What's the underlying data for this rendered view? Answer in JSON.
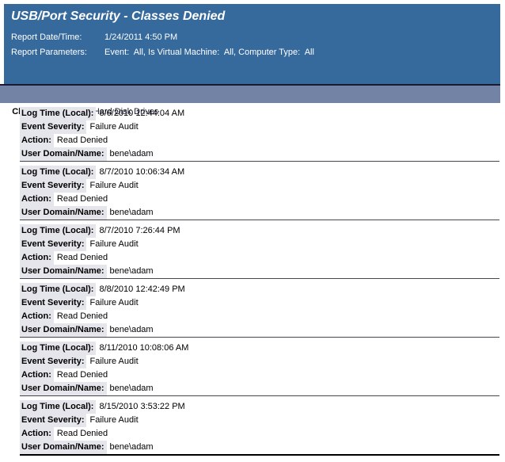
{
  "header": {
    "title": "USB/Port Security - Classes Denied",
    "report_date_label": "Report Date/Time:",
    "report_date_value": "1/24/2011 4:50 PM",
    "report_params_label": "Report Parameters:",
    "report_params_value": "Event:  All, Is Virtual Machine:  All, Computer Type:  All"
  },
  "class_section": {
    "label": "Class Description:",
    "value": "Hard Disk Drives"
  },
  "field_labels": {
    "log_time": "Log Time (Local):",
    "event_severity": "Event Severity:",
    "action": "Action:",
    "user_domain": "User Domain/Name:"
  },
  "records": [
    {
      "log_time": "8/6/2010 12:44:04 AM",
      "event_severity": "Failure Audit",
      "action": "Read Denied",
      "user_domain": "bene\\adam"
    },
    {
      "log_time": "8/7/2010 10:06:34 AM",
      "event_severity": "Failure Audit",
      "action": "Read Denied",
      "user_domain": "bene\\adam"
    },
    {
      "log_time": "8/7/2010 7:26:44 PM",
      "event_severity": "Failure Audit",
      "action": "Read Denied",
      "user_domain": "bene\\adam"
    },
    {
      "log_time": "8/8/2010 12:42:49 PM",
      "event_severity": "Failure Audit",
      "action": "Read Denied",
      "user_domain": "bene\\adam"
    },
    {
      "log_time": "8/11/2010 10:08:06 AM",
      "event_severity": "Failure Audit",
      "action": "Read Denied",
      "user_domain": "bene\\adam"
    },
    {
      "log_time": "8/15/2010 3:53:22 PM",
      "event_severity": "Failure Audit",
      "action": "Read Denied",
      "user_domain": "bene\\adam"
    }
  ],
  "colors": {
    "header_bg": "#36699C",
    "class_bar_bg": "#7383A5",
    "label_bg": "#E5E5EC"
  }
}
